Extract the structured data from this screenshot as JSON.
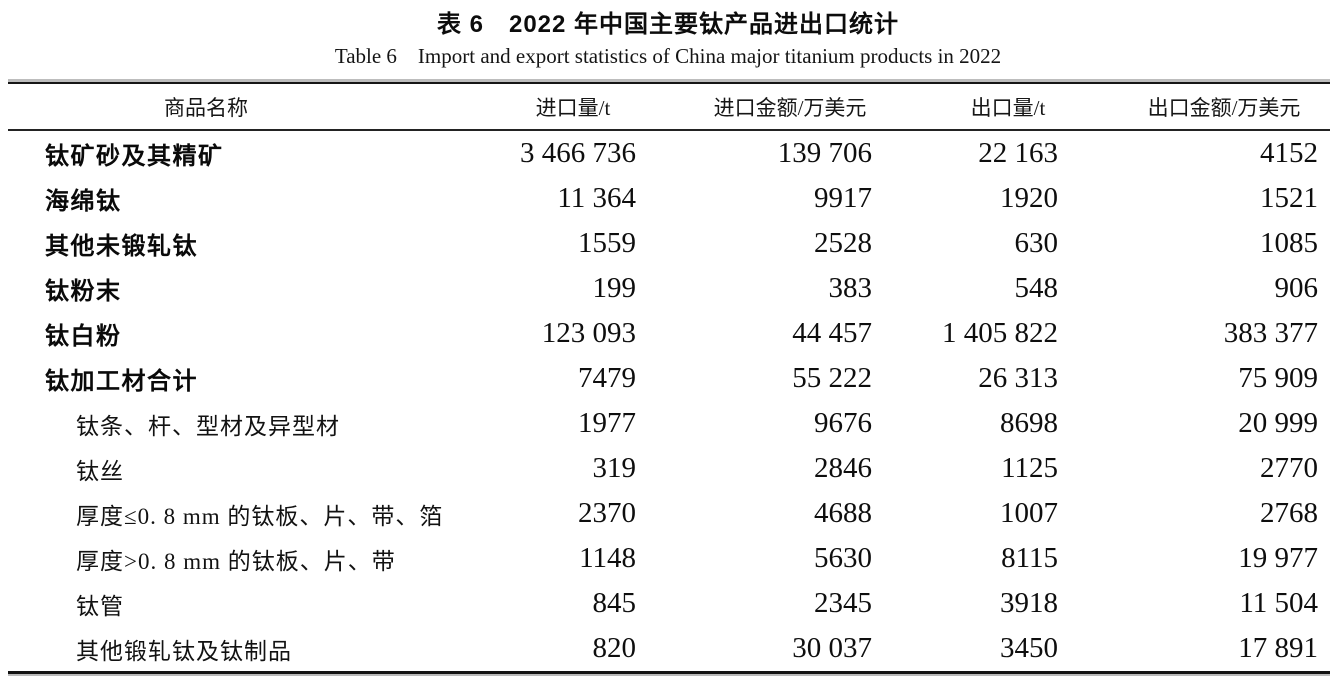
{
  "page": {
    "title_zh": "表 6　2022 年中国主要钛产品进出口统计",
    "title_en": "Table 6 Import and export statistics of China major titanium products in 2022"
  },
  "table": {
    "columns": [
      "商品名称",
      "进口量/t",
      "进口金额/万美元",
      "出口量/t",
      "出口金额/万美元"
    ],
    "rows": [
      {
        "name": "钛矿砂及其精矿",
        "style": "main",
        "values": [
          "3 466 736",
          "139 706",
          "22 163",
          "4152"
        ]
      },
      {
        "name": "海绵钛",
        "style": "main",
        "values": [
          "11 364",
          "9917",
          "1920",
          "1521"
        ]
      },
      {
        "name": "其他未锻轧钛",
        "style": "main",
        "values": [
          "1559",
          "2528",
          "630",
          "1085"
        ]
      },
      {
        "name": "钛粉末",
        "style": "main",
        "values": [
          "199",
          "383",
          "548",
          "906"
        ]
      },
      {
        "name": "钛白粉",
        "style": "main",
        "values": [
          "123 093",
          "44 457",
          "1 405 822",
          "383 377"
        ]
      },
      {
        "name": "钛加工材合计",
        "style": "main",
        "values": [
          "7479",
          "55 222",
          "26 313",
          "75 909"
        ]
      },
      {
        "name": "钛条、杆、型材及异型材",
        "style": "sub",
        "values": [
          "1977",
          "9676",
          "8698",
          "20 999"
        ]
      },
      {
        "name": "钛丝",
        "style": "sub",
        "values": [
          "319",
          "2846",
          "1125",
          "2770"
        ]
      },
      {
        "name": "厚度≤0. 8 mm 的钛板、片、带、箔",
        "style": "sub",
        "values": [
          "2370",
          "4688",
          "1007",
          "2768"
        ]
      },
      {
        "name": "厚度>0. 8 mm 的钛板、片、带",
        "style": "sub",
        "values": [
          "1148",
          "5630",
          "8115",
          "19 977"
        ]
      },
      {
        "name": "钛管",
        "style": "sub",
        "values": [
          "845",
          "2345",
          "3918",
          "11 504"
        ]
      },
      {
        "name": "其他锻轧钛及钛制品",
        "style": "sub",
        "values": [
          "820",
          "30 037",
          "3450",
          "17 891"
        ]
      }
    ]
  }
}
